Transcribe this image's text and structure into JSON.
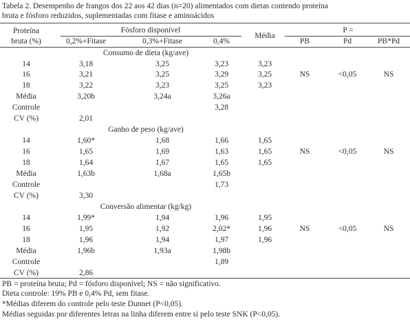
{
  "caption": {
    "line1": "Tabela 2. Desempenho de frangos dos 22 aos 42 dias (n=20) alimentados com dietas contendo proteína",
    "line2": "bruta e fósforo reduzidos, suplementadas com fitase e aminoácidos"
  },
  "header": {
    "pb_line1": "Proteína",
    "pb_line2": "bruta (%)",
    "fosforo": "Fósforo disponível",
    "col1": "0,2%+Fitase",
    "col2": "0,3%+Fitase",
    "col3": "0,4%",
    "media": "Média",
    "p_eq": "P =",
    "pb": "PB",
    "pd": "Pd",
    "pbpd": "PB*Pd"
  },
  "sections": [
    {
      "title": "Consumo de dieta (kg/ave)",
      "rows": [
        {
          "label": "14",
          "c1": "3,18",
          "c2": "3,25",
          "c3": "3,23",
          "media": "3,23"
        },
        {
          "label": "16",
          "c1": "3,21",
          "c2": "3,25",
          "c3": "3,29",
          "media": "3,25"
        },
        {
          "label": "18",
          "c1": "3,22",
          "c2": "3,23",
          "c3": "3,25",
          "media": "3,23"
        },
        {
          "label": "Média",
          "c1": "3,20b",
          "c2": "3,24a",
          "c3": "3,26a"
        },
        {
          "label": "Controle",
          "c3": "3,28"
        },
        {
          "label": "CV (%)",
          "c1": "2,01"
        }
      ],
      "p": {
        "pb": "NS",
        "pd": "<0,05",
        "pbpd": "NS"
      }
    },
    {
      "title": "Ganho de peso (kg/ave)",
      "rows": [
        {
          "label": "14",
          "c1": "1,60*",
          "c2": "1,68",
          "c3": "1,66",
          "media": "1,65"
        },
        {
          "label": "16",
          "c1": "1,65",
          "c2": "1,69",
          "c3": "1,63",
          "media": "1,65"
        },
        {
          "label": "18",
          "c1": "1,64",
          "c2": "1,67",
          "c3": "1,65",
          "media": "1,65"
        },
        {
          "label": "Média",
          "c1": "1,63b",
          "c2": "1,68a",
          "c3": "1,65b"
        },
        {
          "label": "Controle",
          "c3": "1,73"
        },
        {
          "label": "CV (%)",
          "c1": "3,30"
        }
      ],
      "p": {
        "pb": "NS",
        "pd": "<0,05",
        "pbpd": "NS"
      }
    },
    {
      "title": "Conversão alimentar (kg/kg)",
      "rows": [
        {
          "label": "14",
          "c1": "1,99*",
          "c2": "1,94",
          "c3": "1,96",
          "media": "1,95"
        },
        {
          "label": "16",
          "c1": "1,95",
          "c2": "1,92",
          "c3": "2,02*",
          "media": "1,96"
        },
        {
          "label": "18",
          "c1": "1,96",
          "c2": "1,94",
          "c3": "1,97",
          "media": "1,96"
        },
        {
          "label": "Média",
          "c1": "1,96b",
          "c2": "1,93a",
          "c3": "1,98b"
        },
        {
          "label": "Controle",
          "c3": "1,89"
        },
        {
          "label": "CV (%)",
          "c1": "2,86"
        }
      ],
      "p": {
        "pb": "NS",
        "pd": "<0,05",
        "pbpd": "NS"
      }
    }
  ],
  "footnotes": [
    "PB = proteína bruta; Pd = fósforo disponível; NS = não significativo.",
    "Dieta controle: 19% PB e 0,4% Pd, sem fitase.",
    "*Médias diferem do controle pelo teste Dunnet (P<0,05).",
    "Médias seguidas por diferentes letras na linha diferem entre si pelo teste SNK (P<0,05)."
  ]
}
